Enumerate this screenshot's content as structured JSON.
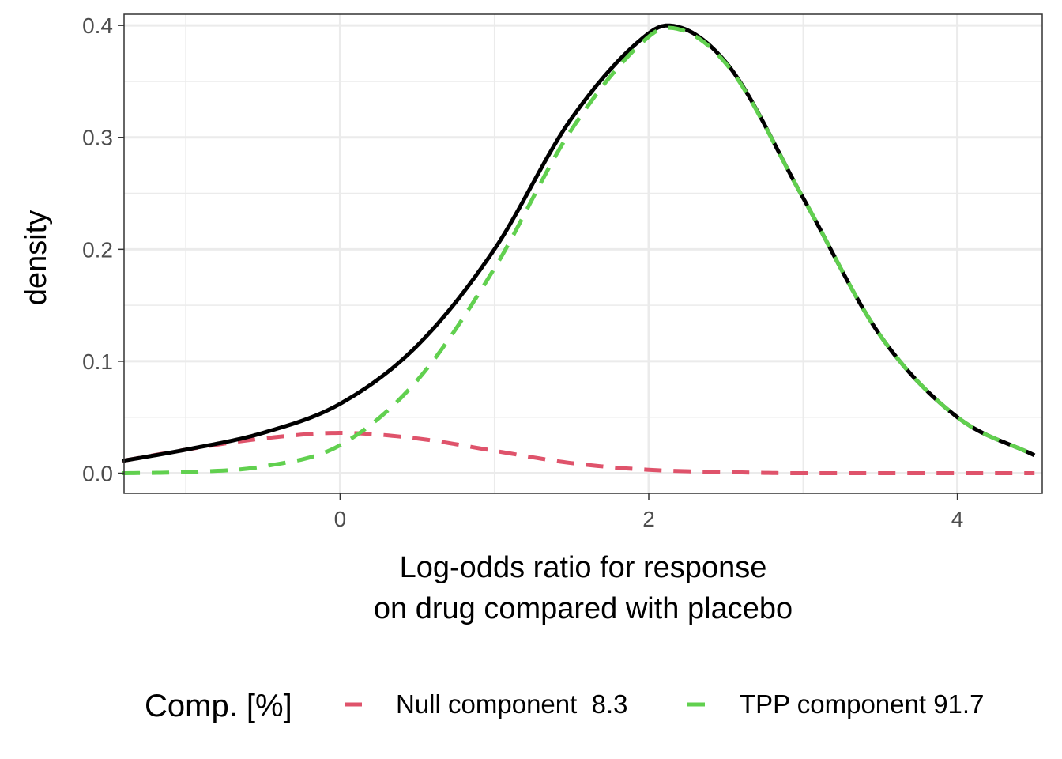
{
  "chart_data": {
    "type": "line",
    "xlabel": [
      "Log-odds ratio for response",
      "on drug compared with placebo"
    ],
    "ylabel": "density",
    "xlim": [
      -1.4,
      4.55
    ],
    "ylim": [
      -0.018,
      0.41
    ],
    "x_ticks": [
      0,
      2,
      4
    ],
    "x_tick_labels": [
      "0",
      "2",
      "4"
    ],
    "y_ticks": [
      0.0,
      0.1,
      0.2,
      0.3,
      0.4
    ],
    "y_tick_labels": [
      "0.0",
      "0.1",
      "0.2",
      "0.3",
      "0.4"
    ],
    "grid": true,
    "legend": {
      "position": "bottom",
      "title": "Comp. [%]",
      "entries": [
        {
          "label": "Null component  8.3",
          "color": "#df536b",
          "linestyle": "dashed"
        },
        {
          "label": "TPP component 91.7",
          "color": "#61d04f",
          "linestyle": "dashed"
        }
      ]
    },
    "series": [
      {
        "key": "total",
        "color": "#000000",
        "linestyle": "solid",
        "x": [
          -1.41,
          -1.0,
          -0.5,
          0.0,
          0.5,
          1.0,
          1.5,
          2.0,
          2.12,
          2.5,
          3.0,
          3.5,
          4.0,
          4.5
        ],
        "y": [
          0.011,
          0.021,
          0.036,
          0.062,
          0.114,
          0.2,
          0.317,
          0.393,
          0.4,
          0.367,
          0.246,
          0.123,
          0.05,
          0.016
        ]
      },
      {
        "key": "null",
        "color": "#df536b",
        "linestyle": "dashed",
        "x": [
          -1.41,
          -1.0,
          -0.5,
          0.0,
          0.5,
          1.0,
          1.5,
          2.0,
          2.5,
          3.0,
          3.5,
          4.0,
          4.5
        ],
        "y": [
          0.011,
          0.021,
          0.031,
          0.036,
          0.031,
          0.02,
          0.009,
          0.003,
          0.001,
          0.0,
          0.0,
          0.0,
          0.0
        ]
      },
      {
        "key": "tpp",
        "color": "#61d04f",
        "linestyle": "dashed",
        "x": [
          -1.41,
          -1.0,
          -0.5,
          0.0,
          0.5,
          1.0,
          1.5,
          2.0,
          2.12,
          2.5,
          3.0,
          3.5,
          4.0,
          4.5
        ],
        "y": [
          0.0,
          0.001,
          0.006,
          0.025,
          0.083,
          0.183,
          0.307,
          0.39,
          0.398,
          0.366,
          0.246,
          0.123,
          0.05,
          0.016
        ]
      }
    ]
  }
}
